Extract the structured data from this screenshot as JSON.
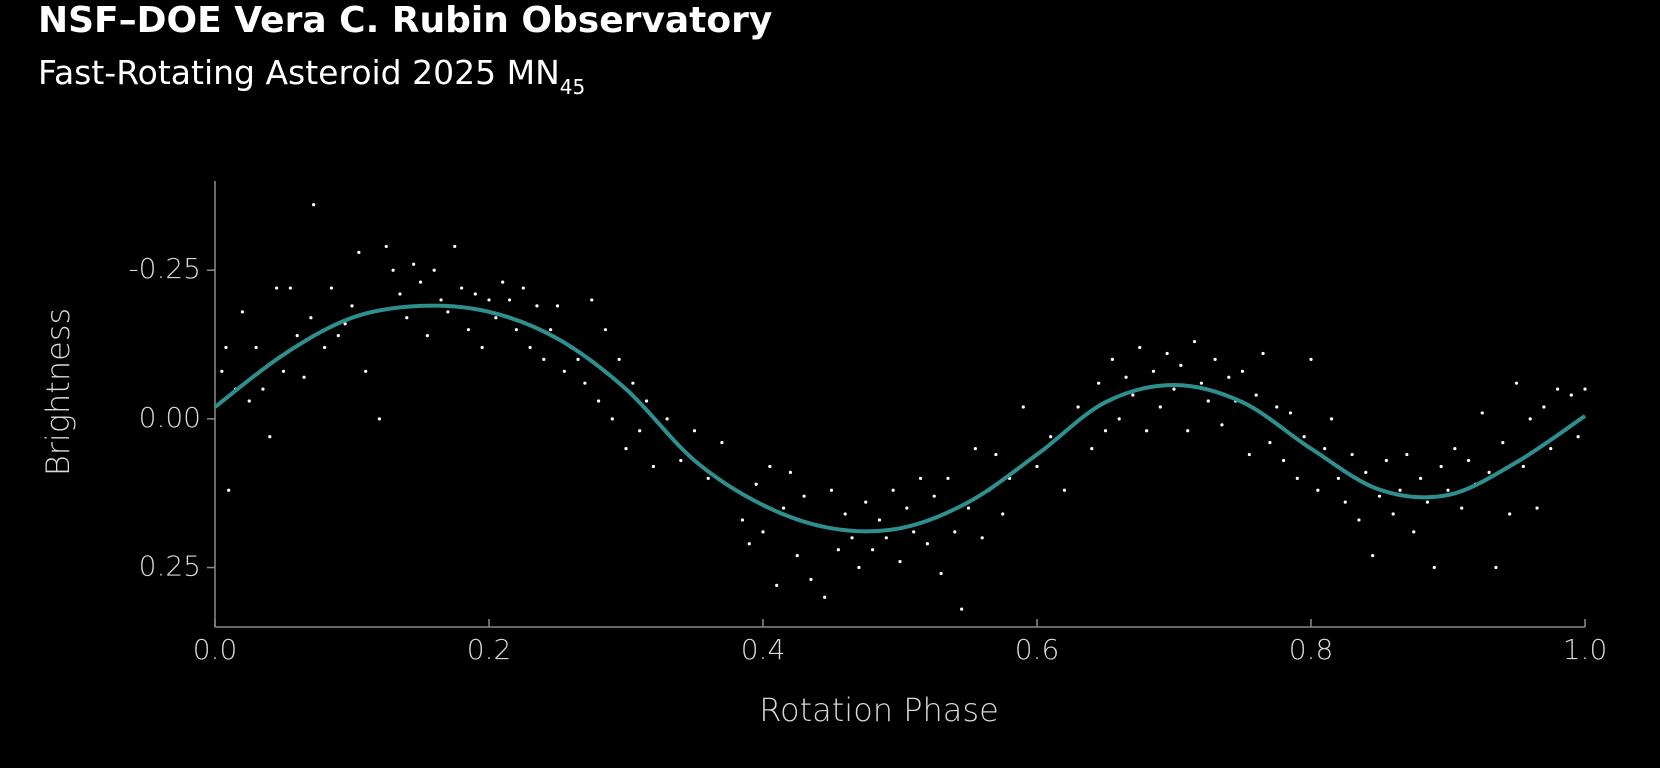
{
  "chart_data": {
    "type": "scatter",
    "title": "NSF–DOE Vera C. Rubin Observatory",
    "subtitle": "Fast-Rotating Asteroid 2025 MN",
    "subtitle_subscript": "45",
    "x_label": "Rotation Phase",
    "y_label": "Brightness",
    "xlim": [
      0,
      1
    ],
    "xticks": [
      {
        "value": 0,
        "label": "0.0"
      },
      0.2,
      0.4,
      0.6,
      0.8,
      {
        "value": 1,
        "label": "1.0"
      }
    ],
    "ylim": [
      0.35,
      -0.4
    ],
    "yticks": [
      -0.25,
      {
        "value": 0,
        "label": "0.00"
      },
      0.25
    ],
    "points": {
      "color": "#ffffff",
      "x": [
        0.005,
        0.008,
        0.01,
        0.015,
        0.02,
        0.025,
        0.03,
        0.035,
        0.04,
        0.045,
        0.05,
        0.055,
        0.06,
        0.065,
        0.07,
        0.072,
        0.08,
        0.085,
        0.09,
        0.095,
        0.1,
        0.105,
        0.11,
        0.115,
        0.12,
        0.125,
        0.13,
        0.135,
        0.14,
        0.145,
        0.15,
        0.155,
        0.16,
        0.165,
        0.17,
        0.175,
        0.18,
        0.185,
        0.19,
        0.195,
        0.2,
        0.205,
        0.21,
        0.215,
        0.22,
        0.225,
        0.23,
        0.235,
        0.24,
        0.245,
        0.25,
        0.255,
        0.26,
        0.265,
        0.27,
        0.275,
        0.28,
        0.285,
        0.29,
        0.295,
        0.3,
        0.305,
        0.31,
        0.315,
        0.32,
        0.33,
        0.34,
        0.35,
        0.36,
        0.37,
        0.38,
        0.385,
        0.39,
        0.395,
        0.4,
        0.405,
        0.41,
        0.415,
        0.42,
        0.425,
        0.43,
        0.435,
        0.44,
        0.445,
        0.45,
        0.455,
        0.46,
        0.465,
        0.47,
        0.475,
        0.48,
        0.485,
        0.49,
        0.495,
        0.5,
        0.505,
        0.51,
        0.515,
        0.52,
        0.525,
        0.53,
        0.535,
        0.54,
        0.545,
        0.55,
        0.555,
        0.56,
        0.565,
        0.57,
        0.575,
        0.58,
        0.59,
        0.6,
        0.61,
        0.62,
        0.63,
        0.64,
        0.645,
        0.65,
        0.655,
        0.66,
        0.665,
        0.67,
        0.675,
        0.68,
        0.685,
        0.69,
        0.695,
        0.7,
        0.705,
        0.71,
        0.715,
        0.72,
        0.725,
        0.73,
        0.735,
        0.74,
        0.745,
        0.75,
        0.755,
        0.76,
        0.765,
        0.77,
        0.775,
        0.78,
        0.785,
        0.79,
        0.795,
        0.8,
        0.805,
        0.81,
        0.815,
        0.82,
        0.825,
        0.83,
        0.835,
        0.84,
        0.845,
        0.85,
        0.855,
        0.86,
        0.865,
        0.87,
        0.875,
        0.88,
        0.885,
        0.89,
        0.895,
        0.9,
        0.905,
        0.91,
        0.915,
        0.92,
        0.925,
        0.93,
        0.935,
        0.94,
        0.945,
        0.95,
        0.955,
        0.96,
        0.965,
        0.97,
        0.975,
        0.98,
        0.985,
        0.99,
        0.995,
        1.0
      ],
      "y": [
        -0.08,
        -0.12,
        0.12,
        -0.05,
        -0.18,
        -0.03,
        -0.12,
        -0.05,
        0.03,
        -0.22,
        -0.08,
        -0.22,
        -0.14,
        -0.07,
        -0.17,
        -0.36,
        -0.12,
        -0.22,
        -0.14,
        -0.16,
        -0.19,
        -0.28,
        -0.08,
        -0.18,
        0.0,
        -0.29,
        -0.25,
        -0.21,
        -0.17,
        -0.26,
        -0.23,
        -0.14,
        -0.25,
        -0.2,
        -0.18,
        -0.29,
        -0.22,
        -0.15,
        -0.21,
        -0.12,
        -0.2,
        -0.17,
        -0.23,
        -0.2,
        -0.15,
        -0.22,
        -0.12,
        -0.19,
        -0.1,
        -0.15,
        -0.19,
        -0.08,
        -0.12,
        -0.1,
        -0.06,
        -0.2,
        -0.03,
        -0.15,
        0.0,
        -0.1,
        0.05,
        -0.06,
        0.02,
        -0.03,
        0.08,
        0.0,
        0.07,
        0.02,
        0.1,
        0.04,
        0.12,
        0.17,
        0.21,
        0.11,
        0.19,
        0.08,
        0.28,
        0.15,
        0.09,
        0.23,
        0.13,
        0.27,
        0.18,
        0.3,
        0.12,
        0.22,
        0.16,
        0.2,
        0.25,
        0.14,
        0.22,
        0.17,
        0.2,
        0.12,
        0.24,
        0.15,
        0.19,
        0.1,
        0.21,
        0.13,
        0.26,
        0.1,
        0.19,
        0.32,
        0.15,
        0.05,
        0.2,
        0.12,
        0.06,
        0.16,
        0.1,
        -0.02,
        0.08,
        0.03,
        0.12,
        -0.02,
        0.05,
        -0.06,
        0.02,
        -0.1,
        0.0,
        -0.07,
        -0.04,
        -0.12,
        0.02,
        -0.08,
        -0.02,
        -0.11,
        -0.05,
        -0.09,
        0.02,
        -0.13,
        -0.06,
        -0.03,
        -0.1,
        0.01,
        -0.07,
        -0.03,
        -0.08,
        0.06,
        -0.04,
        -0.11,
        0.04,
        -0.02,
        0.07,
        -0.01,
        0.1,
        0.03,
        -0.1,
        0.12,
        0.05,
        0.0,
        0.1,
        0.14,
        0.06,
        0.17,
        0.09,
        0.23,
        0.13,
        0.07,
        0.16,
        0.12,
        0.06,
        0.19,
        0.1,
        0.14,
        0.25,
        0.08,
        0.12,
        0.05,
        0.15,
        0.07,
        0.11,
        -0.01,
        0.09,
        0.25,
        0.04,
        0.16,
        -0.06,
        0.08,
        0.0,
        0.15,
        -0.02,
        0.05,
        -0.05,
        0.02,
        -0.04,
        0.03,
        -0.05
      ]
    },
    "curve": {
      "color": "#2f8f8f",
      "x": [
        0,
        0.05,
        0.1,
        0.15,
        0.2,
        0.25,
        0.3,
        0.35,
        0.4,
        0.45,
        0.5,
        0.55,
        0.6,
        0.65,
        0.7,
        0.75,
        0.8,
        0.85,
        0.9,
        0.95,
        1.0
      ],
      "y": [
        -0.02,
        -0.108,
        -0.17,
        -0.19,
        -0.18,
        -0.135,
        -0.05,
        0.07,
        0.145,
        0.184,
        0.184,
        0.14,
        0.06,
        -0.028,
        -0.057,
        -0.028,
        0.05,
        0.119,
        0.128,
        0.073,
        -0.005
      ]
    }
  }
}
